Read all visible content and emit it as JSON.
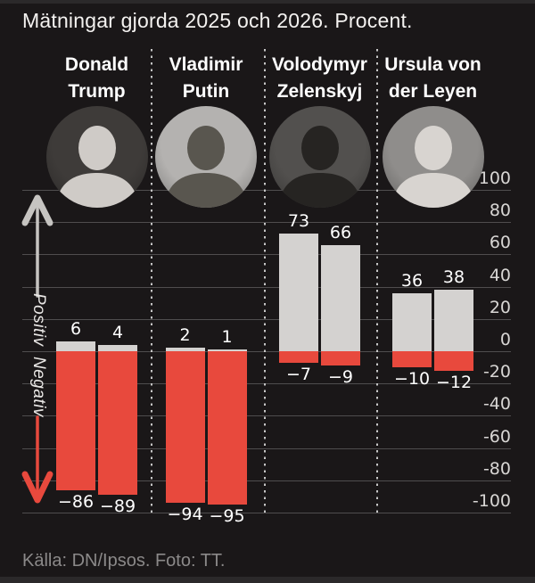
{
  "title": "Mätningar gjorda 2025 och 2026. Procent.",
  "footer": "Källa: DN/Ipsos. Foto: TT.",
  "direction_labels": {
    "positive": "Positiv",
    "negative": "Negativ"
  },
  "axis": {
    "position": "right",
    "tick_labels": [
      "100",
      "80",
      "60",
      "40",
      "20",
      "0",
      "-20",
      "-40",
      "-60",
      "-80",
      "-100"
    ],
    "ticks": [
      100,
      80,
      60,
      40,
      20,
      0,
      -20,
      -40,
      -60,
      -80,
      -100
    ]
  },
  "chart_data": {
    "type": "bar",
    "title": "Mätningar gjorda 2025 och 2026. Procent.",
    "unit": "procent",
    "ylim": [
      -100,
      100
    ],
    "grid": true,
    "legend_position": "none",
    "periods": [
      "2025",
      "2026"
    ],
    "people": [
      {
        "name_line1": "Donald",
        "name_line2": "Trump",
        "slug": "donald-trump",
        "bars": [
          {
            "positive": 6,
            "negative": -86
          },
          {
            "positive": 4,
            "negative": -89
          }
        ]
      },
      {
        "name_line1": "Vladimir",
        "name_line2": "Putin",
        "slug": "vladimir-putin",
        "bars": [
          {
            "positive": 2,
            "negative": -94
          },
          {
            "positive": 1,
            "negative": -95
          }
        ]
      },
      {
        "name_line1": "Volodymyr",
        "name_line2": "Zelenskyj",
        "slug": "volodymyr-zelenskyj",
        "bars": [
          {
            "positive": 73,
            "negative": -7
          },
          {
            "positive": 66,
            "negative": -9
          }
        ]
      },
      {
        "name_line1": "Ursula von",
        "name_line2": "der Leyen",
        "slug": "ursula-von-der-leyen",
        "bars": [
          {
            "positive": 36,
            "negative": -10
          },
          {
            "positive": 38,
            "negative": -12
          }
        ]
      }
    ]
  },
  "portraits": [
    {
      "slug": "donald-trump",
      "bg": "#3e3b39",
      "fg": "#cfcbc7"
    },
    {
      "slug": "vladimir-putin",
      "bg": "#b4b2b0",
      "fg": "#59564f"
    },
    {
      "slug": "volodymyr-zelenskyj",
      "bg": "#52504e",
      "fg": "#262422"
    },
    {
      "slug": "ursula-von-der-leyen",
      "bg": "#8f8d8b",
      "fg": "#d8d4d0"
    }
  ],
  "colors": {
    "background": "#1a1718",
    "edge_strip": "#2b292a",
    "bar_positive": "#d4d2d0",
    "bar_negative": "#e8493d",
    "gridline": "#4f4d4e",
    "axis_text": "#d8d6d4",
    "value_text": "#ffffff",
    "name_text": "#ffffff",
    "footer_text": "#8b8989",
    "arrow_up": "#c6c4c1",
    "arrow_down": "#e8493d",
    "separator_dots": "#c6c6c6"
  }
}
